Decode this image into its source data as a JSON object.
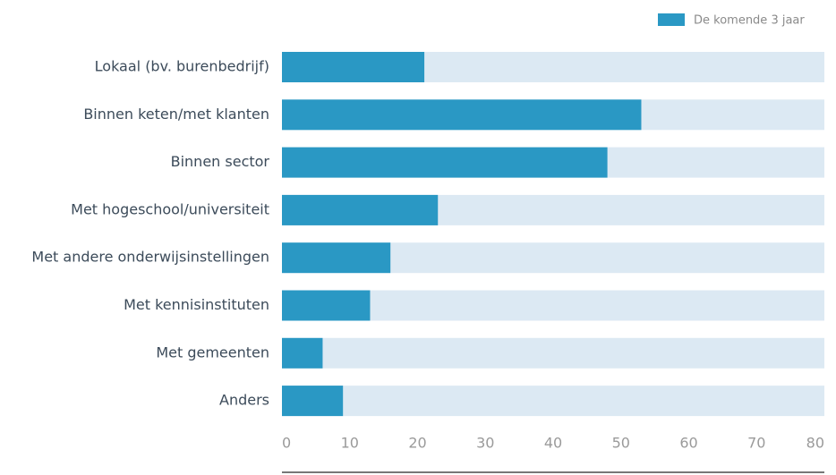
{
  "chart_data": {
    "type": "hbar",
    "categories": [
      "Lokaal (bv. burenbedrijf)",
      "Binnen keten/met klanten",
      "Binnen sector",
      "Met hogeschool/universiteit",
      "Met andere onderwijsinstellingen",
      "Met kennisinstituten",
      "Met gemeenten",
      "Anders"
    ],
    "series": [
      {
        "name": "De komende 3 jaar",
        "color": "#2a98c4",
        "values": [
          21,
          53,
          48,
          23,
          16,
          13,
          6,
          9
        ]
      }
    ],
    "xlim": [
      0,
      80
    ],
    "xticks": [
      0,
      10,
      20,
      30,
      40,
      50,
      60,
      70,
      80
    ],
    "legend": "top-right"
  }
}
